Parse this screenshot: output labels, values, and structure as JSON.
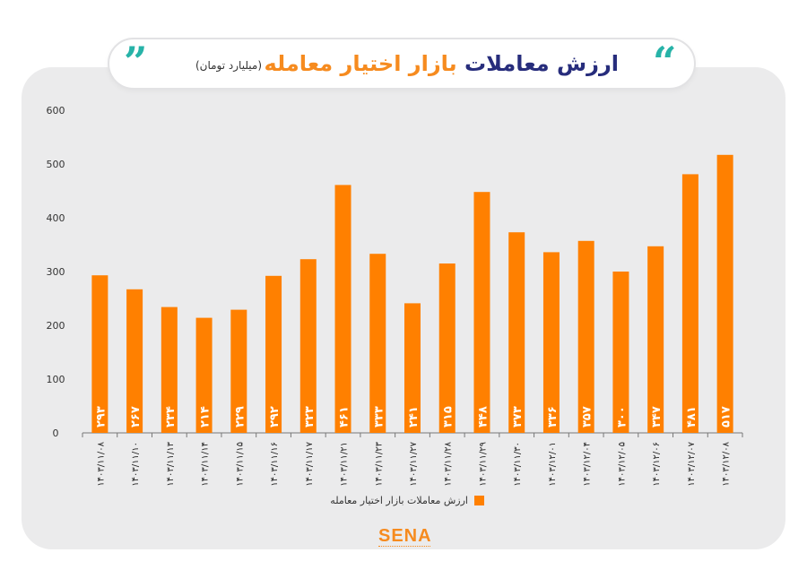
{
  "header": {
    "title_part1": "ارزش معاملات",
    "title_part2": "بازار اختیار معامله",
    "subtitle": "(میلیارد تومان)",
    "quote_open": "”",
    "quote_close": "“"
  },
  "logo": {
    "text": "SENA"
  },
  "colors": {
    "bar": "#ff8000",
    "accent": "#f68b1f",
    "title_dark": "#272d7c",
    "quote": "#27b3a8",
    "background": "#ebebec"
  },
  "chart_data": {
    "type": "bar",
    "categories": [
      "۱۴۰۳/۱۱/۰۸",
      "۱۴۰۳/۱۱/۱۰",
      "۱۴۰۳/۱۱/۱۳",
      "۱۴۰۳/۱۱/۱۴",
      "۱۴۰۳/۱۱/۱۵",
      "۱۴۰۳/۱۱/۱۶",
      "۱۴۰۳/۱۱/۱۷",
      "۱۴۰۳/۱۱/۲۱",
      "۱۴۰۳/۱۱/۲۳",
      "۱۴۰۳/۱۱/۲۷",
      "۱۴۰۳/۱۱/۲۸",
      "۱۴۰۳/۱۱/۲۹",
      "۱۴۰۳/۱۱/۳۰",
      "۱۴۰۳/۱۲/۰۱",
      "۱۴۰۳/۱۲/۰۴",
      "۱۴۰۳/۱۲/۰۵",
      "۱۴۰۳/۱۲/۰۶",
      "۱۴۰۳/۱۲/۰۷",
      "۱۴۰۳/۱۲/۰۸"
    ],
    "values": [
      293,
      267,
      234,
      214,
      229,
      292,
      323,
      461,
      333,
      241,
      315,
      448,
      373,
      336,
      357,
      300,
      347,
      481,
      517
    ],
    "value_labels": [
      "۲۹۳",
      "۲۶۷",
      "۲۳۴",
      "۲۱۴",
      "۲۲۹",
      "۲۹۲",
      "۳۲۳",
      "۴۶۱",
      "۳۳۳",
      "۲۴۱",
      "۳۱۵",
      "۴۴۸",
      "۳۷۳",
      "۳۳۶",
      "۳۵۷",
      "۳۰۰",
      "۳۴۷",
      "۴۸۱",
      "۵۱۷"
    ],
    "yticks": [
      0,
      100,
      200,
      300,
      400,
      500,
      600
    ],
    "ytick_labels": [
      "0",
      "100",
      "200",
      "300",
      "400",
      "500",
      "600"
    ],
    "ylim": [
      0,
      600
    ],
    "legend": "ارزش معاملات بازار اختیار معامله",
    "legend_position": "bottom-center",
    "grid": false
  }
}
